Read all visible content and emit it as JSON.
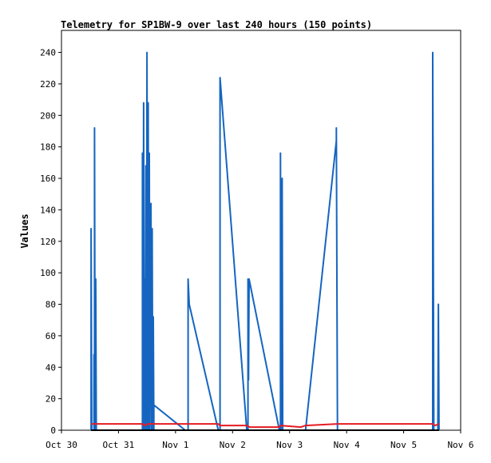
{
  "chart_data": {
    "type": "line",
    "title": "Telemetry for SP1BW-9 over last 240 hours (150 points)",
    "xlabel": "",
    "ylabel": "Values",
    "ylim": [
      0,
      254
    ],
    "xlim": [
      0,
      7
    ],
    "yticks": [
      0,
      20,
      40,
      60,
      80,
      100,
      120,
      140,
      160,
      180,
      200,
      220,
      240
    ],
    "xticks": [
      {
        "x": 0,
        "label": "Oct 30"
      },
      {
        "x": 1,
        "label": "Oct 31"
      },
      {
        "x": 2,
        "label": "Nov 1"
      },
      {
        "x": 3,
        "label": "Nov 2"
      },
      {
        "x": 4,
        "label": "Nov 3"
      },
      {
        "x": 5,
        "label": "Nov 4"
      },
      {
        "x": 6,
        "label": "Nov 5"
      },
      {
        "x": 7,
        "label": "Nov 6"
      }
    ],
    "grid": false,
    "series": [
      {
        "color": "#1565c0",
        "points": [
          [
            0.52,
            0
          ],
          [
            0.52,
            128
          ],
          [
            0.53,
            0
          ],
          [
            0.57,
            0
          ],
          [
            0.57,
            48
          ],
          [
            0.58,
            0
          ],
          [
            0.58,
            192
          ],
          [
            0.59,
            0
          ],
          [
            0.6,
            96
          ],
          [
            0.61,
            0
          ],
          [
            1.42,
            0
          ],
          [
            1.42,
            176
          ],
          [
            1.43,
            0
          ],
          [
            1.44,
            208
          ],
          [
            1.45,
            0
          ],
          [
            1.46,
            96
          ],
          [
            1.47,
            0
          ],
          [
            1.48,
            168
          ],
          [
            1.49,
            0
          ],
          [
            1.5,
            240
          ],
          [
            1.51,
            0
          ],
          [
            1.52,
            208
          ],
          [
            1.53,
            0
          ],
          [
            1.54,
            176
          ],
          [
            1.55,
            0
          ],
          [
            1.56,
            112
          ],
          [
            1.57,
            144
          ],
          [
            1.58,
            0
          ],
          [
            1.59,
            128
          ],
          [
            1.6,
            0
          ],
          [
            1.61,
            72
          ],
          [
            1.62,
            0
          ],
          [
            1.62,
            16
          ],
          [
            2.17,
            0
          ],
          [
            2.22,
            0
          ],
          [
            2.22,
            96
          ],
          [
            2.24,
            80
          ],
          [
            2.75,
            0
          ],
          [
            2.78,
            0
          ],
          [
            2.78,
            224
          ],
          [
            3.25,
            0
          ],
          [
            3.27,
            0
          ],
          [
            3.27,
            96
          ],
          [
            3.28,
            32
          ],
          [
            3.29,
            96
          ],
          [
            3.82,
            0
          ],
          [
            3.84,
            0
          ],
          [
            3.84,
            176
          ],
          [
            3.85,
            0
          ],
          [
            3.87,
            160
          ],
          [
            3.88,
            0
          ],
          [
            4.28,
            0
          ],
          [
            4.82,
            184
          ],
          [
            4.82,
            192
          ],
          [
            4.84,
            0
          ],
          [
            6.51,
            0
          ],
          [
            6.51,
            240
          ],
          [
            6.53,
            0
          ],
          [
            6.6,
            0
          ],
          [
            6.61,
            80
          ],
          [
            6.62,
            0
          ]
        ]
      },
      {
        "color": "#e51c23",
        "points": [
          [
            0.52,
            4
          ],
          [
            1.42,
            4
          ],
          [
            1.45,
            3
          ],
          [
            1.52,
            4
          ],
          [
            2.75,
            4
          ],
          [
            2.78,
            3
          ],
          [
            3.25,
            3
          ],
          [
            3.3,
            2
          ],
          [
            3.82,
            2
          ],
          [
            3.84,
            3
          ],
          [
            4.2,
            2
          ],
          [
            4.28,
            3
          ],
          [
            4.84,
            4
          ],
          [
            6.51,
            4
          ],
          [
            6.55,
            3
          ],
          [
            6.62,
            4
          ]
        ]
      },
      {
        "color": "#000000",
        "points": [
          [
            0.52,
            0
          ],
          [
            6.62,
            0
          ]
        ]
      }
    ]
  }
}
